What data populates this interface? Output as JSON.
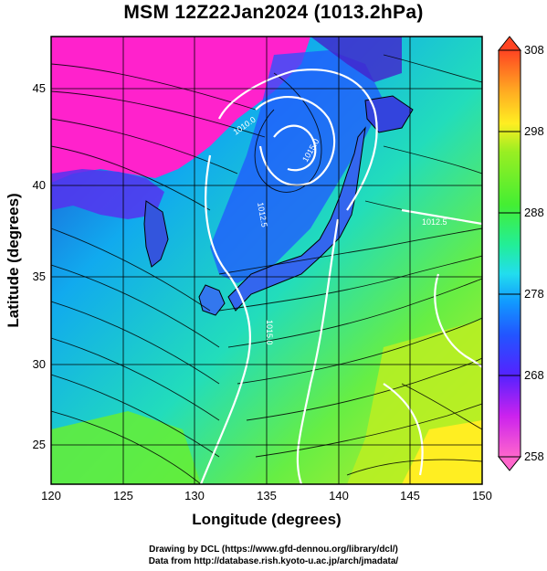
{
  "title": "MSM 12Z22Jan2024 (1013.2hPa)",
  "x_axis": {
    "label": "Longitude (degrees)",
    "ticks": [
      "120",
      "125",
      "130",
      "135",
      "140",
      "145",
      "150"
    ]
  },
  "y_axis": {
    "label": "Latitude (degrees)",
    "ticks": [
      "45",
      "40",
      "35",
      "30",
      "25"
    ]
  },
  "colorbar": {
    "ticks": [
      "308",
      "298",
      "288",
      "278",
      "268",
      "258"
    ],
    "min": 258,
    "max": 308,
    "colors": [
      "#ff66cc",
      "#cc22ee",
      "#7722ff",
      "#2244ff",
      "#1199ff",
      "#22ddee",
      "#22ee99",
      "#44ee33",
      "#99ee22",
      "#ffee22",
      "#ffaa22",
      "#ff5522"
    ]
  },
  "contour_labels": [
    "1010.0",
    "1012.5",
    "1012.5",
    "1015.0",
    "1015.0"
  ],
  "credits": {
    "line1": "Drawing by DCL (https://www.gfd-dennou.org/library/dcl/)",
    "line2": "Data from http://database.rish.kyoto-u.ac.jp/arch/jmadata/"
  }
}
